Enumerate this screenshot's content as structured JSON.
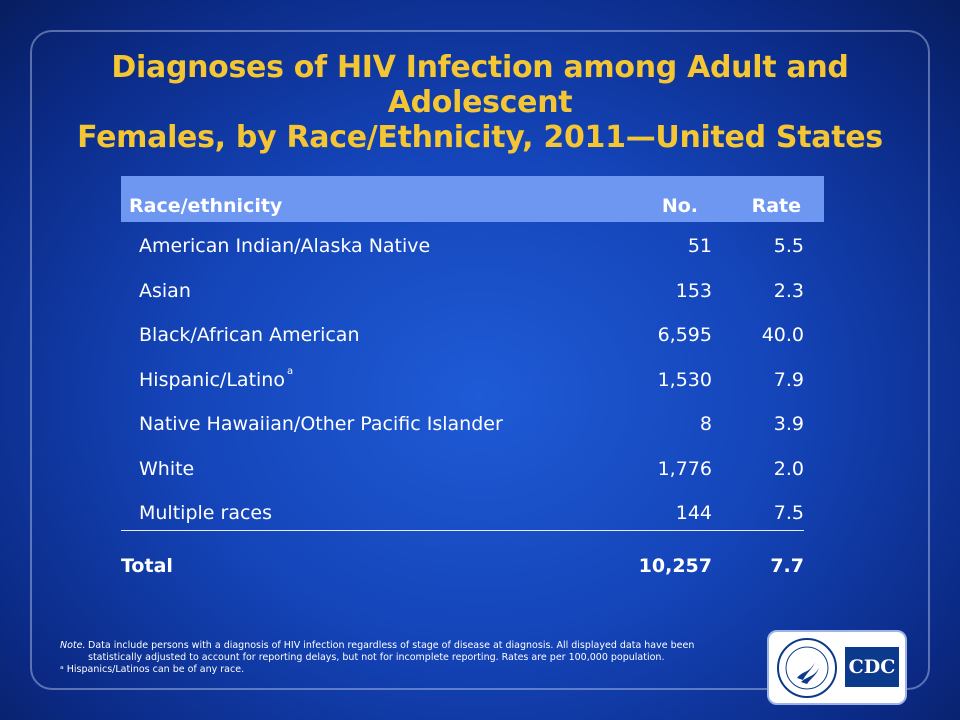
{
  "title": {
    "line1": "Diagnoses of HIV Infection among Adult and Adolescent",
    "line2": "Females, by Race/Ethnicity, 2011—United States"
  },
  "table": {
    "headers": {
      "race": "Race/ethnicity",
      "no": "No.",
      "rate": "Rate"
    },
    "rows": [
      {
        "race": "American Indian/Alaska Native",
        "no": "51",
        "rate": "5.5",
        "sup": ""
      },
      {
        "race": "Asian",
        "no": "153",
        "rate": "2.3",
        "sup": ""
      },
      {
        "race": "Black/African American",
        "no": "6,595",
        "rate": "40.0",
        "sup": ""
      },
      {
        "race": "Hispanic/Latino",
        "no": "1,530",
        "rate": "7.9",
        "sup": "a"
      },
      {
        "race": "Native Hawaiian/Other Pacific Islander",
        "no": "8",
        "rate": "3.9",
        "sup": ""
      },
      {
        "race": "White",
        "no": "1,776",
        "rate": "2.0",
        "sup": ""
      },
      {
        "race": "Multiple races",
        "no": "144",
        "rate": "7.5",
        "sup": ""
      }
    ],
    "total": {
      "race": "Total",
      "no": "10,257",
      "rate": "7.7"
    }
  },
  "footnote": {
    "note_label": "Note.",
    "note_text": "Data include persons with a diagnosis of HIV infection regardless of stage of disease at diagnosis. All displayed data have been statistically adjusted to account for reporting delays, but not for incomplete reporting. Rates are per 100,000 population.",
    "a_text": "ᵃ Hispanics/Latinos can be of any race."
  },
  "logo": {
    "cdc_text": "CDC"
  },
  "colors": {
    "title": "#f5c634",
    "header_bg": "#6e97f2",
    "background": "#1444b8"
  }
}
